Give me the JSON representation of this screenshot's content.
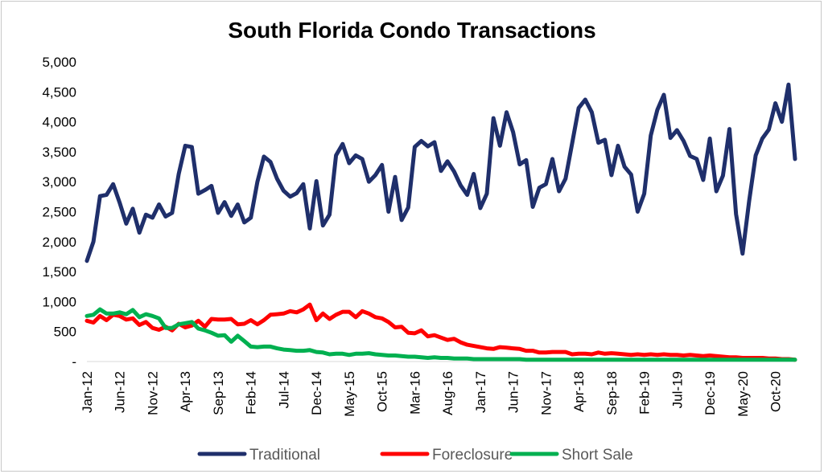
{
  "chart_data": {
    "type": "line",
    "title": "South Florida Condo Transactions",
    "xlabel": "",
    "ylabel": "",
    "ylim": [
      0,
      5000
    ],
    "y_ticks": [
      0,
      500,
      1000,
      1500,
      2000,
      2500,
      3000,
      3500,
      4000,
      4500,
      5000
    ],
    "y_tick_labels": [
      "-",
      "500",
      "1,000",
      "1,500",
      "2,000",
      "2,500",
      "3,000",
      "3,500",
      "4,000",
      "4,500",
      "5,000"
    ],
    "x_tick_labels": [
      "Jan-12",
      "Jun-12",
      "Nov-12",
      "Apr-13",
      "Sep-13",
      "Feb-14",
      "Jul-14",
      "Dec-14",
      "May-15",
      "Oct-15",
      "Mar-16",
      "Aug-16",
      "Jan-17",
      "Jun-17",
      "Nov-17",
      "Apr-18",
      "Sep-18",
      "Feb-19",
      "Jul-19",
      "Dec-19",
      "May-20",
      "Oct-20"
    ],
    "x_start": "Jan-12",
    "grid": false,
    "legend_position": "bottom",
    "series": [
      {
        "name": "Traditional",
        "color": "#1f2f6b",
        "values": [
          1680,
          2000,
          2760,
          2780,
          2960,
          2650,
          2300,
          2550,
          2150,
          2450,
          2400,
          2620,
          2420,
          2480,
          3130,
          3600,
          3580,
          2800,
          2860,
          2930,
          2480,
          2660,
          2430,
          2620,
          2320,
          2400,
          3000,
          3420,
          3330,
          3050,
          2850,
          2750,
          2810,
          2960,
          2220,
          3010,
          2270,
          2450,
          3440,
          3630,
          3310,
          3440,
          3380,
          3000,
          3110,
          3280,
          2500,
          3080,
          2360,
          2570,
          3580,
          3680,
          3590,
          3660,
          3180,
          3340,
          3170,
          2940,
          2780,
          3130,
          2560,
          2800,
          4060,
          3600,
          4160,
          3830,
          3290,
          3360,
          2580,
          2900,
          2960,
          3380,
          2840,
          3050,
          3640,
          4230,
          4370,
          4160,
          3650,
          3700,
          3110,
          3600,
          3250,
          3120,
          2500,
          2800,
          3770,
          4200,
          4450,
          3730,
          3860,
          3680,
          3430,
          3380,
          3030,
          3720,
          2840,
          3100,
          3880,
          2460,
          1800,
          2680,
          3440,
          3720,
          3870,
          4310,
          4000,
          4620,
          3380
        ]
      },
      {
        "name": "Foreclosure",
        "color": "#ff0000",
        "values": [
          680,
          650,
          760,
          690,
          780,
          760,
          700,
          720,
          610,
          660,
          560,
          530,
          580,
          520,
          630,
          570,
          600,
          680,
          580,
          710,
          700,
          700,
          710,
          620,
          630,
          690,
          620,
          690,
          780,
          790,
          800,
          840,
          820,
          870,
          950,
          690,
          800,
          710,
          780,
          830,
          830,
          740,
          840,
          800,
          740,
          720,
          660,
          570,
          580,
          480,
          470,
          520,
          420,
          440,
          400,
          360,
          380,
          320,
          280,
          260,
          240,
          220,
          210,
          240,
          230,
          220,
          210,
          180,
          180,
          150,
          150,
          160,
          160,
          160,
          120,
          130,
          130,
          120,
          150,
          130,
          140,
          130,
          120,
          110,
          120,
          110,
          120,
          110,
          120,
          110,
          110,
          100,
          110,
          100,
          90,
          100,
          90,
          80,
          70,
          70,
          60,
          60,
          60,
          60,
          50,
          50,
          40,
          40,
          30
        ]
      },
      {
        "name": "Short Sale",
        "color": "#00b050",
        "values": [
          760,
          780,
          870,
          800,
          800,
          820,
          790,
          860,
          740,
          790,
          760,
          720,
          560,
          560,
          620,
          640,
          660,
          550,
          520,
          480,
          430,
          440,
          330,
          430,
          340,
          250,
          240,
          250,
          250,
          220,
          200,
          190,
          180,
          180,
          190,
          160,
          150,
          120,
          130,
          130,
          110,
          130,
          130,
          140,
          120,
          110,
          100,
          100,
          90,
          80,
          80,
          70,
          60,
          70,
          60,
          60,
          50,
          50,
          50,
          40,
          40,
          40,
          40,
          40,
          40,
          40,
          40,
          30,
          30,
          30,
          30,
          30,
          30,
          30,
          30,
          30,
          30,
          30,
          30,
          30,
          30,
          30,
          30,
          30,
          30,
          30,
          30,
          30,
          30,
          30,
          30,
          30,
          30,
          30,
          30,
          30,
          30,
          30,
          30,
          30,
          30,
          30,
          30,
          30,
          30,
          30,
          30,
          30,
          30
        ]
      }
    ]
  }
}
